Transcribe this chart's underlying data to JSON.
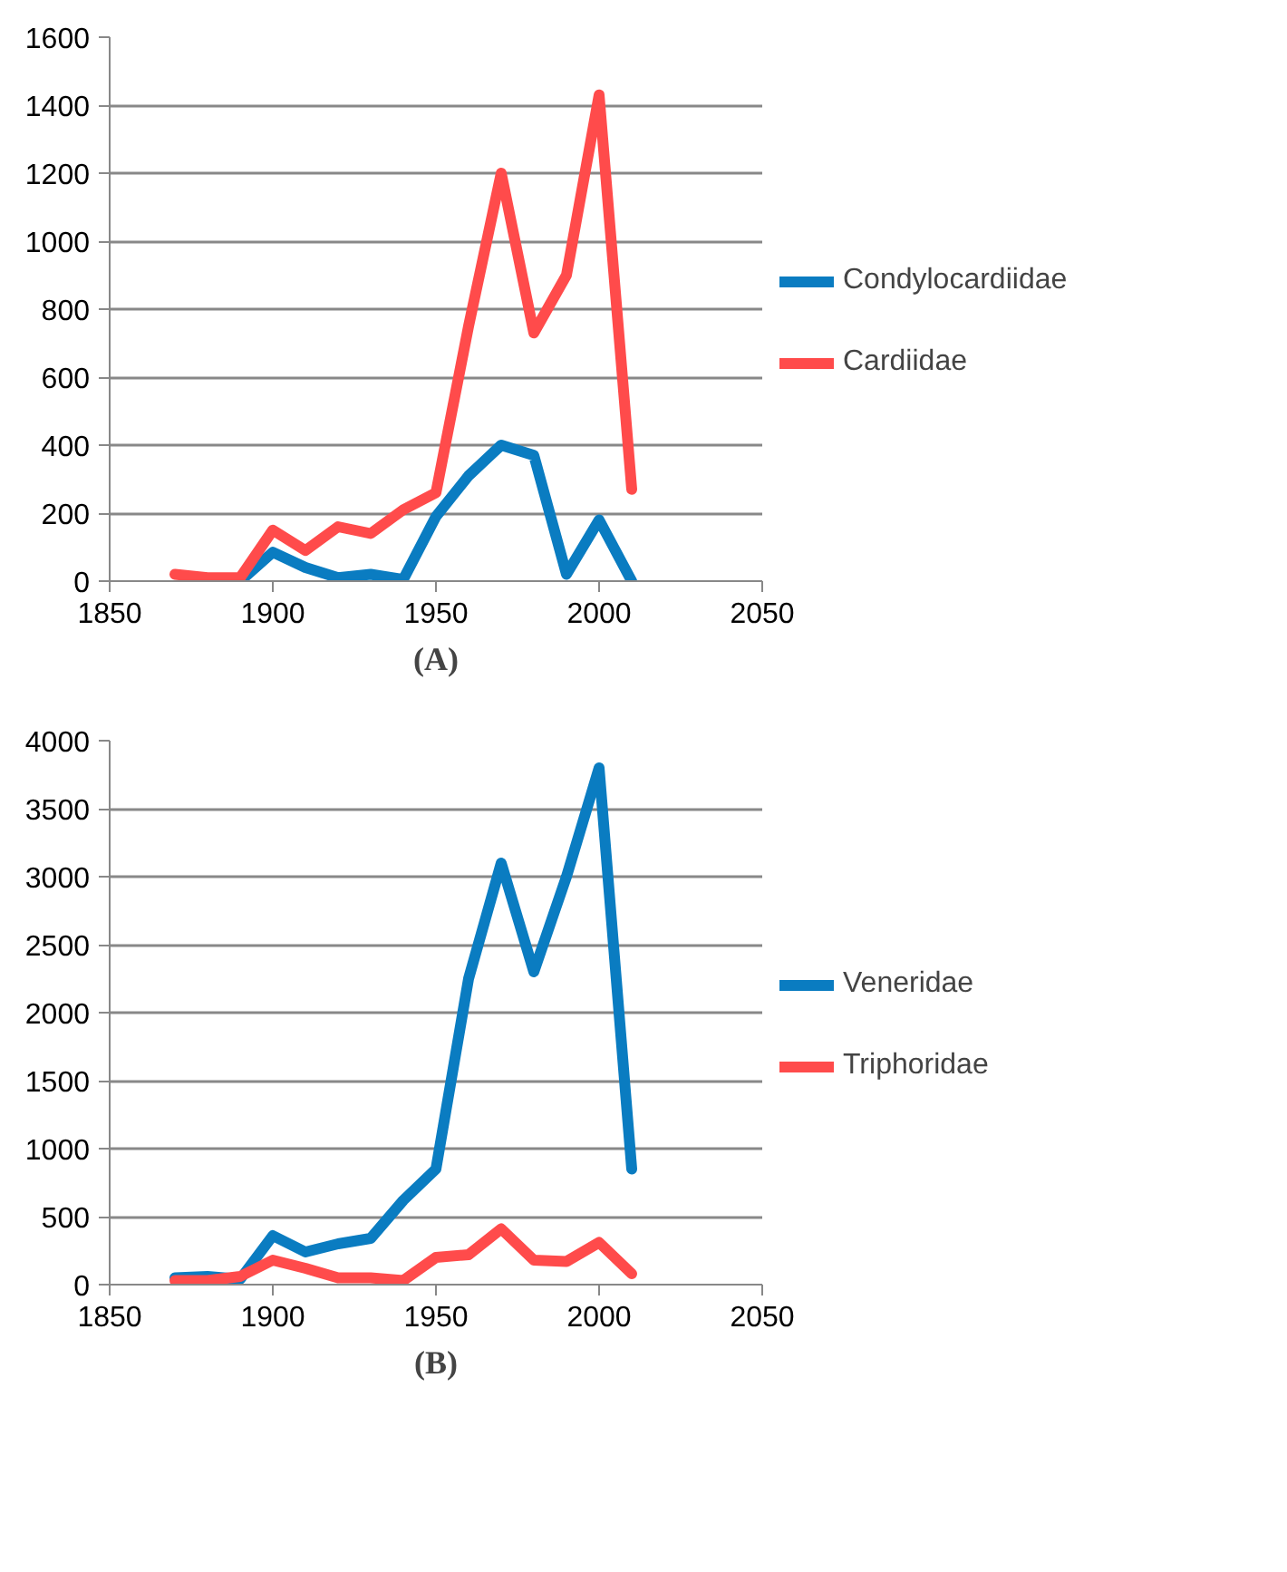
{
  "chart_data": [
    {
      "type": "line",
      "x": [
        1870,
        1880,
        1890,
        1900,
        1910,
        1920,
        1930,
        1940,
        1950,
        1960,
        1970,
        1980,
        1990,
        2000,
        2010
      ],
      "series": [
        {
          "name": "Condylocardiidae",
          "color": "#0a7cc1",
          "x": [
            1890,
            1900,
            1910,
            1920,
            1930,
            1940,
            1950,
            1960,
            1970,
            1980,
            1990,
            2000,
            2010
          ],
          "values": [
            0,
            85,
            40,
            10,
            20,
            5,
            190,
            310,
            400,
            370,
            20,
            180,
            0
          ]
        },
        {
          "name": "Cardiidae",
          "color": "#ff4b4b",
          "values": [
            20,
            10,
            10,
            150,
            90,
            160,
            140,
            210,
            260,
            750,
            1200,
            730,
            900,
            1430,
            270
          ]
        }
      ],
      "xlim": [
        1850,
        2050
      ],
      "xticks": [
        1850,
        1900,
        1950,
        2000,
        2050
      ],
      "ylim": [
        0,
        1600
      ],
      "yticks": [
        0,
        200,
        400,
        600,
        800,
        1000,
        1200,
        1400,
        1600
      ],
      "grid": "y",
      "legend": "right",
      "marker": "none",
      "line_style": "solid",
      "annotations": [
        "(A)"
      ]
    },
    {
      "type": "line",
      "x": [
        1870,
        1880,
        1890,
        1900,
        1910,
        1920,
        1930,
        1940,
        1950,
        1960,
        1970,
        1980,
        1990,
        2000,
        2010
      ],
      "series": [
        {
          "name": "Veneridae",
          "color": "#0a7cc1",
          "values": [
            50,
            60,
            40,
            360,
            240,
            300,
            340,
            620,
            850,
            2250,
            3100,
            2300,
            3000,
            3800,
            850
          ]
        },
        {
          "name": "Triphoridae",
          "color": "#ff4b4b",
          "values": [
            30,
            30,
            60,
            180,
            120,
            50,
            50,
            30,
            200,
            220,
            410,
            180,
            170,
            310,
            80
          ]
        }
      ],
      "xlim": [
        1850,
        2050
      ],
      "xticks": [
        1850,
        1900,
        1950,
        2000,
        2050
      ],
      "ylim": [
        0,
        4000
      ],
      "yticks": [
        0,
        500,
        1000,
        1500,
        2000,
        2500,
        3000,
        3500,
        4000
      ],
      "grid": "y",
      "legend": "right",
      "marker": "none",
      "line_style": "solid",
      "annotations": [
        "(B)"
      ]
    }
  ]
}
